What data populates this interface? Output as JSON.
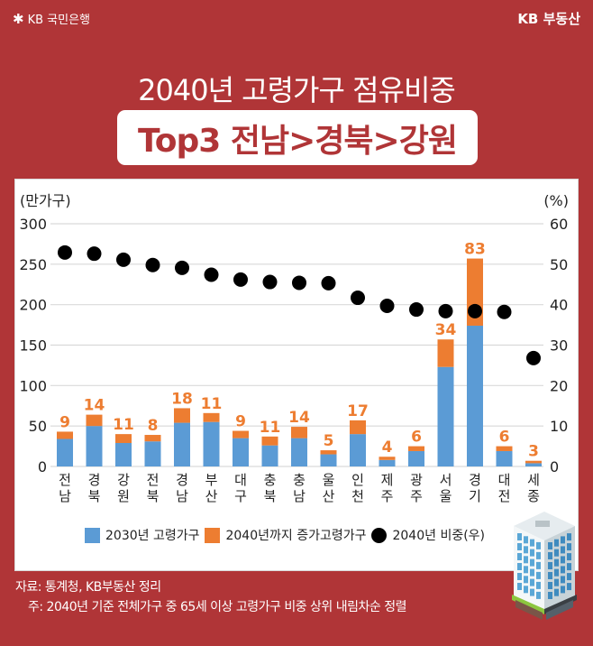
{
  "header": {
    "bank_logo_icon": "kb-star-icon",
    "bank_name": "KB 국민은행",
    "service_name": "KB 부동산"
  },
  "title": "2040년 고령가구 점유비중",
  "subtitle": "Top3 전남>경북>강원",
  "chart_data": {
    "type": "bar",
    "stacked": true,
    "categories": [
      "전남",
      "경북",
      "강원",
      "전북",
      "경남",
      "부산",
      "대구",
      "충북",
      "충남",
      "울산",
      "인천",
      "제주",
      "광주",
      "서울",
      "경기",
      "대전",
      "세종"
    ],
    "category_lines": [
      [
        "전",
        "남"
      ],
      [
        "경",
        "북"
      ],
      [
        "강",
        "원"
      ],
      [
        "전",
        "북"
      ],
      [
        "경",
        "남"
      ],
      [
        "부",
        "산"
      ],
      [
        "대",
        "구"
      ],
      [
        "충",
        "북"
      ],
      [
        "충",
        "남"
      ],
      [
        "울",
        "산"
      ],
      [
        "인",
        "천"
      ],
      [
        "제",
        "주"
      ],
      [
        "광",
        "주"
      ],
      [
        "서",
        "울"
      ],
      [
        "경",
        "기"
      ],
      [
        "대",
        "전"
      ],
      [
        "세",
        "종"
      ]
    ],
    "series": [
      {
        "name": "2030년 고령가구",
        "type": "bar",
        "axis": "left",
        "color": "#5b9bd5",
        "values": [
          34,
          50,
          29,
          31,
          54,
          55,
          35,
          26,
          35,
          15,
          40,
          8,
          19,
          123,
          174,
          19,
          4
        ]
      },
      {
        "name": "2040년까지 증가고령가구",
        "type": "bar",
        "axis": "left",
        "color": "#ed7d31",
        "values": [
          9,
          14,
          11,
          8,
          18,
          11,
          9,
          11,
          14,
          5,
          17,
          4,
          6,
          34,
          83,
          6,
          3
        ],
        "data_labels": [
          "9",
          "14",
          "11",
          "8",
          "18",
          "11",
          "9",
          "11",
          "14",
          "5",
          "17",
          "4",
          "6",
          "34",
          "83",
          "6",
          "3"
        ]
      },
      {
        "name": "2040년 비중(우)",
        "type": "scatter",
        "axis": "right",
        "color": "#000000",
        "values": [
          52.9,
          52.6,
          51.1,
          49.8,
          49.1,
          47.4,
          46.2,
          45.6,
          45.4,
          45.3,
          41.7,
          39.7,
          38.8,
          38.4,
          38.4,
          38.2,
          26.8
        ]
      }
    ],
    "ylabel": "(만가구)",
    "ylabel_right": "(%)",
    "ylim": [
      0,
      300
    ],
    "ylim_right": [
      0,
      60
    ],
    "yticks": [
      "0",
      "50",
      "100",
      "150",
      "200",
      "250",
      "300"
    ],
    "yticks_right": [
      "0",
      "10",
      "20",
      "30",
      "40",
      "50",
      "60"
    ],
    "grid": true,
    "legend_position": "bottom"
  },
  "legend": [
    {
      "label": "2030년 고령가구",
      "color": "#5b9bd5",
      "marker": "square"
    },
    {
      "label": "2040년까지 증가고령가구",
      "color": "#ed7d31",
      "marker": "square"
    },
    {
      "label": "2040년 비중(우)",
      "color": "#000000",
      "marker": "circle"
    }
  ],
  "notes": {
    "source": "자료: 통계청, KB부동산 정리",
    "note": "주: 2040년 기준 전체가구 중 65세 이상 고령가구 비중 상위 내림차순 정렬"
  },
  "decoration": {
    "illustration": "office-building-icon"
  }
}
